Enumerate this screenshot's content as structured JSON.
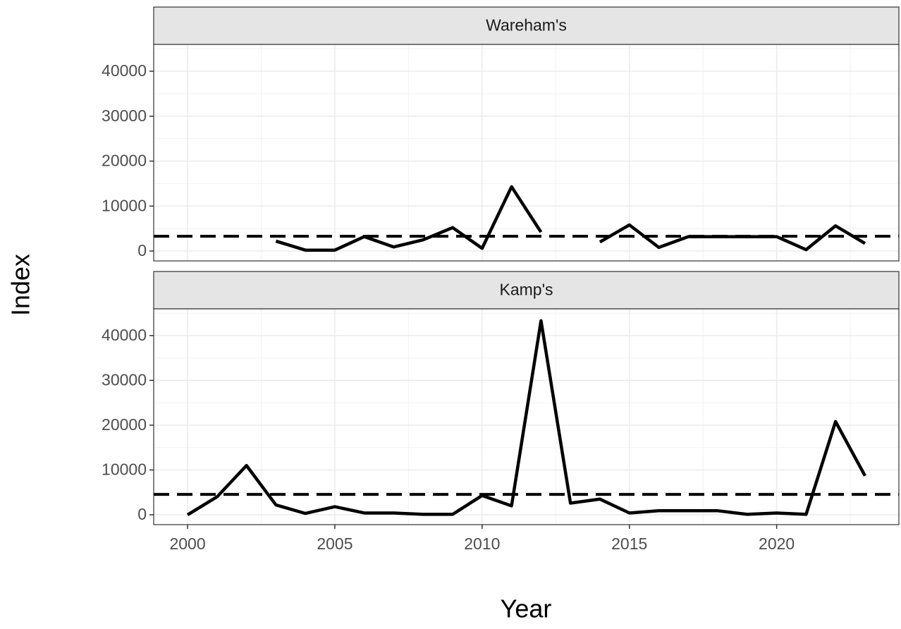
{
  "y_label": "Index",
  "x_label": "Year",
  "chart_data": [
    {
      "type": "line",
      "title": "Wareham's",
      "x": [
        2000,
        2001,
        2002,
        2003,
        2004,
        2005,
        2006,
        2007,
        2008,
        2009,
        2010,
        2011,
        2012,
        2013,
        2014,
        2015,
        2016,
        2017,
        2018,
        2019,
        2020,
        2021,
        2022,
        2023
      ],
      "series": [
        {
          "color": "#000000",
          "values": [
            null,
            null,
            null,
            2200,
            200,
            200,
            3200,
            900,
            2500,
            5200,
            600,
            14300,
            4200,
            null,
            2000,
            5800,
            800,
            3200,
            3200,
            3200,
            3200,
            300,
            5600,
            1700
          ]
        }
      ],
      "hline": 3300,
      "xlim": [
        1998.85,
        2024.15
      ],
      "ylim": [
        -2200,
        45960
      ],
      "xticks": [
        2000,
        2005,
        2010,
        2015,
        2020
      ],
      "yticks": [
        0,
        10000,
        20000,
        30000,
        40000
      ],
      "grid": true
    },
    {
      "type": "line",
      "title": "Kamp's",
      "x": [
        2000,
        2001,
        2002,
        2003,
        2004,
        2005,
        2006,
        2007,
        2008,
        2009,
        2010,
        2011,
        2012,
        2013,
        2014,
        2015,
        2016,
        2017,
        2018,
        2019,
        2020,
        2021,
        2022,
        2023
      ],
      "series": [
        {
          "color": "#000000",
          "values": [
            0,
            4000,
            11000,
            2200,
            300,
            1800,
            400,
            400,
            100,
            100,
            4300,
            2000,
            43300,
            2600,
            3500,
            400,
            900,
            900,
            900,
            100,
            400,
            100,
            20800,
            8700
          ]
        }
      ],
      "hline": 4550,
      "xlim": [
        1998.85,
        2024.15
      ],
      "ylim": [
        -2200,
        45960
      ],
      "xticks": [
        2000,
        2005,
        2010,
        2015,
        2020
      ],
      "yticks": [
        0,
        10000,
        20000,
        30000,
        40000
      ],
      "grid": true
    }
  ]
}
